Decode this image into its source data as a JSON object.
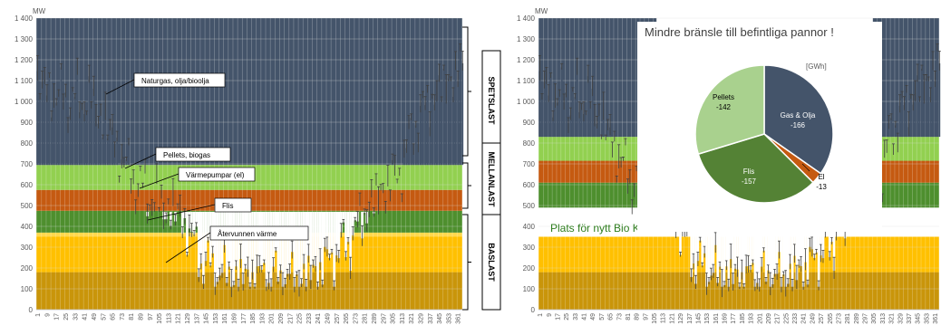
{
  "chart_data": [
    {
      "type": "bar",
      "unit_label": "MW",
      "ylim": [
        0,
        1400
      ],
      "yticks": [
        "0",
        "100",
        "200",
        "300",
        "400",
        "500",
        "600",
        "700",
        "800",
        "900",
        "1 000",
        "1 100",
        "1 200",
        "1 300",
        "1 400"
      ],
      "xticks": [
        "1",
        "9",
        "17",
        "25",
        "33",
        "41",
        "49",
        "57",
        "65",
        "73",
        "81",
        "89",
        "97",
        "105",
        "113",
        "121",
        "129",
        "137",
        "145",
        "153",
        "161",
        "169",
        "177",
        "185",
        "193",
        "201",
        "209",
        "217",
        "225",
        "233",
        "241",
        "249",
        "257",
        "265",
        "273",
        "281",
        "289",
        "297",
        "305",
        "313",
        "321",
        "329",
        "337",
        "345",
        "353",
        "361"
      ],
      "grid": true,
      "layers": [
        {
          "name": "Återvunnen värme",
          "from": 0,
          "to": 180,
          "color": "#c9950a"
        },
        {
          "name": "Flis",
          "from": 180,
          "to": 350,
          "color": "#ffc000"
        },
        {
          "name": "Värmepumpar (el)",
          "from": 350,
          "to": 370,
          "color": "#ffd84d"
        },
        {
          "name": "Flis",
          "from": 370,
          "to": 475,
          "color": "#4e8f2e"
        },
        {
          "name": "Pellets, biogas",
          "from": 475,
          "to": 575,
          "color": "#c55a11"
        },
        {
          "name": "Pellets, biogas",
          "from": 575,
          "to": 695,
          "color": "#92d050"
        },
        {
          "name": "Naturgas, olja/bioolja",
          "from": 695,
          "to": 1400,
          "color": "#44546a"
        }
      ],
      "demand_profile": [
        {
          "day": 1,
          "value": 1080
        },
        {
          "day": 15,
          "value": 1030
        },
        {
          "day": 30,
          "value": 1000
        },
        {
          "day": 45,
          "value": 1010
        },
        {
          "day": 60,
          "value": 880
        },
        {
          "day": 75,
          "value": 700
        },
        {
          "day": 90,
          "value": 570
        },
        {
          "day": 105,
          "value": 500
        },
        {
          "day": 120,
          "value": 460
        },
        {
          "day": 130,
          "value": 380
        },
        {
          "day": 140,
          "value": 250
        },
        {
          "day": 150,
          "value": 190
        },
        {
          "day": 170,
          "value": 160
        },
        {
          "day": 200,
          "value": 150
        },
        {
          "day": 225,
          "value": 150
        },
        {
          "day": 240,
          "value": 190
        },
        {
          "day": 255,
          "value": 250
        },
        {
          "day": 270,
          "value": 340
        },
        {
          "day": 280,
          "value": 450
        },
        {
          "day": 295,
          "value": 560
        },
        {
          "day": 310,
          "value": 640
        },
        {
          "day": 325,
          "value": 900
        },
        {
          "day": 340,
          "value": 1020
        },
        {
          "day": 355,
          "value": 1110
        },
        {
          "day": 365,
          "value": 1150
        }
      ],
      "annotations": [
        "Naturgas, olja/bioolja",
        "Pellets, biogas",
        "Värmepumpar (el)",
        "Flis",
        "Återvunnen värme"
      ],
      "bracket_labels": [
        "SPETSLAST",
        "MELLANLAST",
        "BASLAST"
      ]
    },
    {
      "type": "bar",
      "unit_label": "MW",
      "ylim": [
        0,
        1400
      ],
      "yticks": [
        "0",
        "100",
        "200",
        "300",
        "400",
        "500",
        "600",
        "700",
        "800",
        "900",
        "1 000",
        "1 100",
        "1 200",
        "1 300",
        "1 400"
      ],
      "xticks": [
        "1",
        "9",
        "17",
        "25",
        "33",
        "41",
        "49",
        "57",
        "65",
        "73",
        "81",
        "89",
        "97",
        "105",
        "113",
        "121",
        "129",
        "137",
        "145",
        "153",
        "161",
        "169",
        "177",
        "185",
        "193",
        "201",
        "209",
        "217",
        "225",
        "233",
        "241",
        "249",
        "257",
        "265",
        "273",
        "281",
        "289",
        "297",
        "305",
        "313",
        "321",
        "329",
        "337",
        "345",
        "353",
        "361"
      ],
      "grid": true,
      "annotation": "Plats för nytt  Bio KVV !",
      "pie": {
        "type": "pie",
        "title": "Mindre bränsle till befintliga pannor !",
        "unit": "[GWh]",
        "slices": [
          {
            "label": "Gas & Olja",
            "value": "-166",
            "amount": 166,
            "color": "#44546a"
          },
          {
            "label": "El",
            "value": "-13",
            "amount": 13,
            "color": "#c55a11"
          },
          {
            "label": "Flis",
            "value": "-157",
            "amount": 157,
            "color": "#548235"
          },
          {
            "label": "Pellets",
            "value": "-142",
            "amount": 142,
            "color": "#a9d18e"
          }
        ]
      }
    }
  ]
}
